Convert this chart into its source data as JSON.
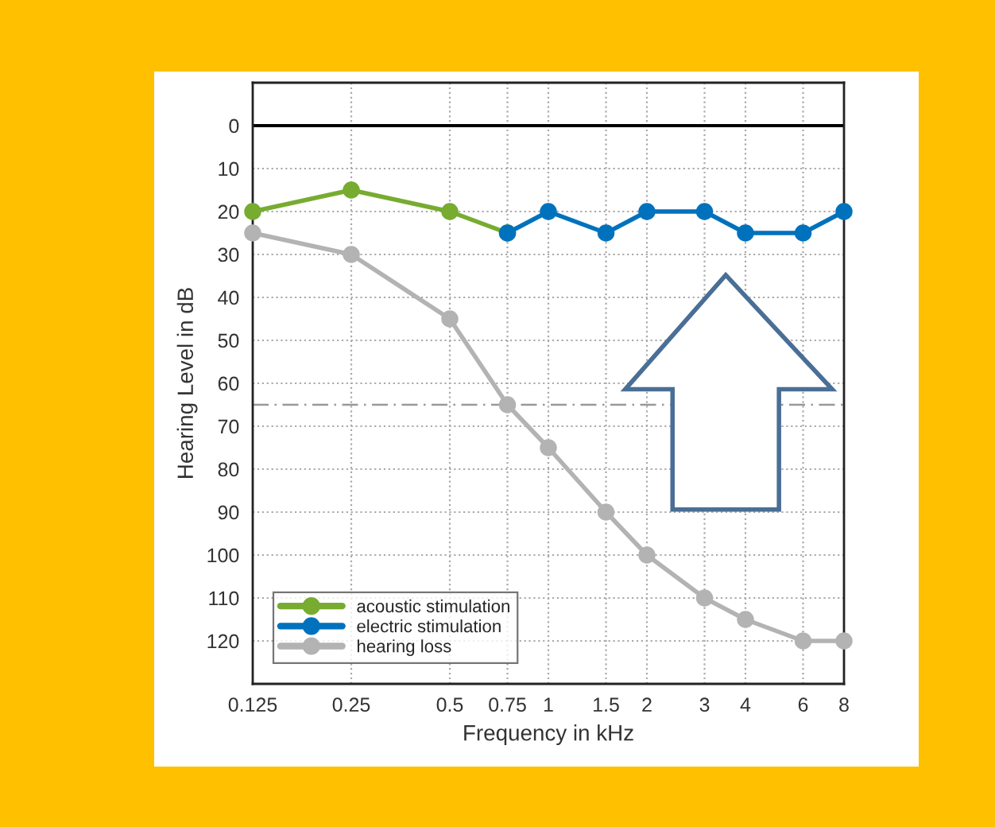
{
  "chart_data": {
    "type": "line",
    "xlabel": "Frequency in kHz",
    "ylabel": "Hearing Level in dB",
    "log": "x",
    "xlim": [
      0.125,
      8
    ],
    "xticks": [
      0.125,
      0.25,
      0.5,
      0.75,
      1,
      1.5,
      2,
      3,
      4,
      6,
      8
    ],
    "ylim": [
      130,
      -10
    ],
    "yticks": [
      0,
      10,
      20,
      30,
      40,
      50,
      60,
      70,
      80,
      90,
      100,
      110,
      120
    ],
    "grid": true,
    "legend": "bottom left",
    "marker": "circle",
    "line_style": "solid",
    "ref_lines": [
      {
        "axis": "y",
        "value": 0,
        "color": "#000000",
        "line_style": "solid"
      },
      {
        "axis": "y",
        "value": 65,
        "color": "#999999",
        "line_style": "dashed"
      }
    ],
    "series": [
      {
        "name": "acoustic stimulation",
        "color": "#77ac30",
        "x": [
          0.125,
          0.25,
          0.5,
          0.75
        ],
        "values": [
          20,
          15,
          20,
          25
        ]
      },
      {
        "name": "electric stimulation",
        "color": "#0072bd",
        "x": [
          0.75,
          1,
          1.5,
          2,
          3,
          4,
          6,
          8
        ],
        "values": [
          25,
          20,
          25,
          20,
          20,
          25,
          25,
          20
        ]
      },
      {
        "name": "hearing loss",
        "color": "#b3b3b3",
        "x": [
          0.125,
          0.25,
          0.5,
          0.75,
          1,
          1.5,
          2,
          3,
          4,
          6,
          8
        ],
        "values": [
          25,
          30,
          45,
          65,
          75,
          90,
          100,
          110,
          115,
          120,
          120
        ]
      }
    ]
  }
}
